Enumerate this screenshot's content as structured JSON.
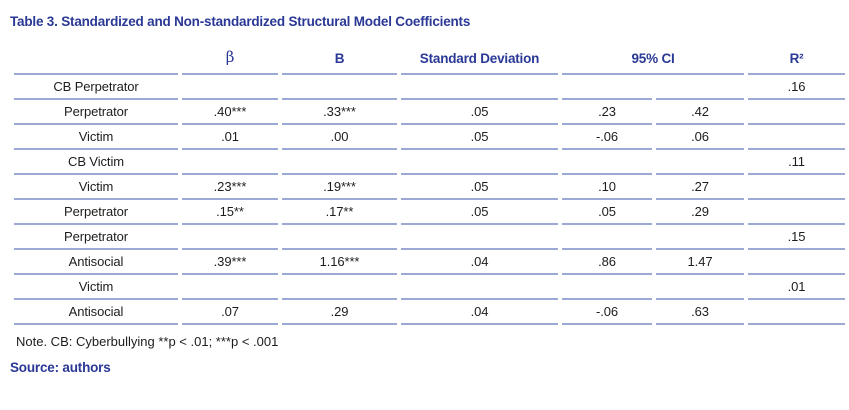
{
  "title": "Table 3. Standardized and Non-standardized Structural Model Coefficients",
  "columns": {
    "label": "",
    "beta": "β",
    "b": "B",
    "sd": "Standard Deviation",
    "ci": "95% CI",
    "r2": "R²"
  },
  "rows": [
    {
      "label": "CB Perpetrator",
      "beta": "",
      "b": "",
      "sd": "",
      "ci_low": "",
      "ci_high": "",
      "r2": ".16"
    },
    {
      "label": "Perpetrator",
      "beta": ".40***",
      "b": ".33***",
      "sd": ".05",
      "ci_low": ".23",
      "ci_high": ".42",
      "r2": ""
    },
    {
      "label": "Victim",
      "beta": ".01",
      "b": ".00",
      "sd": ".05",
      "ci_low": "-.06",
      "ci_high": ".06",
      "r2": ""
    },
    {
      "label": "CB Victim",
      "beta": "",
      "b": "",
      "sd": "",
      "ci_low": "",
      "ci_high": "",
      "r2": ".11"
    },
    {
      "label": "Victim",
      "beta": ".23***",
      "b": ".19***",
      "sd": ".05",
      "ci_low": ".10",
      "ci_high": ".27",
      "r2": ""
    },
    {
      "label": "Perpetrator",
      "beta": ".15**",
      "b": ".17**",
      "sd": ".05",
      "ci_low": ".05",
      "ci_high": ".29",
      "r2": ""
    },
    {
      "label": "Perpetrator",
      "beta": "",
      "b": "",
      "sd": "",
      "ci_low": "",
      "ci_high": "",
      "r2": ".15"
    },
    {
      "label": "Antisocial",
      "beta": ".39***",
      "b": "1.16***",
      "sd": ".04",
      "ci_low": ".86",
      "ci_high": "1.47",
      "r2": ""
    },
    {
      "label": "Victim",
      "beta": "",
      "b": "",
      "sd": "",
      "ci_low": "",
      "ci_high": "",
      "r2": ".01"
    },
    {
      "label": "Antisocial",
      "beta": ".07",
      "b": ".29",
      "sd": ".04",
      "ci_low": "-.06",
      "ci_high": ".63",
      "r2": ""
    }
  ],
  "note": "Note. CB: Cyberbullying **p < .01; ***p < .001",
  "source": "Source: authors",
  "colors": {
    "accent_blue": "#2a3896",
    "rule_blue": "#9da9d5",
    "body_text": "#1d1d1b"
  }
}
